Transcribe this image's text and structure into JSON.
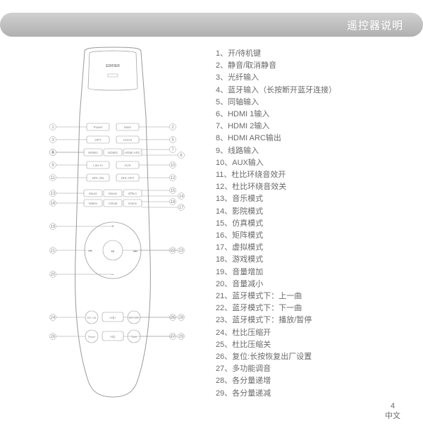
{
  "header": {
    "title": "遥控器说明"
  },
  "remote": {
    "brand": "EDIFIER",
    "outline_color": "#999999",
    "buttons": {
      "r1": [
        "Power",
        "Mute"
      ],
      "r2": [
        "OPT",
        "COAX"
      ],
      "r3": [
        "HDMI1",
        "HDMI2",
        "HDMI ARC"
      ],
      "r4": [
        "Line In",
        "AUX"
      ],
      "r5": [
        "DPL ON",
        "DPL OFF"
      ],
      "r6": [
        "Music",
        "Movie",
        "Effect"
      ],
      "r7": [
        "Matrix",
        "Virtual",
        "Game"
      ],
      "bottom": [
        "DPL ON",
        "Adj+",
        "DPL OFF",
        "Reset",
        "Adj-",
        "Tune"
      ]
    },
    "callouts_left": [
      1,
      3,
      4,
      6,
      9,
      11,
      13,
      16,
      21,
      19,
      20,
      24,
      26
    ],
    "callouts_right": [
      2,
      5,
      7,
      8,
      10,
      12,
      15,
      14,
      18,
      17,
      22,
      23,
      25,
      28,
      27,
      29
    ],
    "dpad_symbols": {
      "up": "+",
      "down": "−",
      "left": "⏮",
      "right": "⏭",
      "center": "⏯"
    }
  },
  "list": [
    "开/待机键",
    "静音/取消静音",
    "光纤输入",
    "蓝牙输入（长按断开蓝牙连接）",
    "同轴输入",
    "HDMI 1输入",
    "HDMI 2输入",
    "HDMI ARC输出",
    "线路输入",
    "AUX输入",
    "杜比环绕音效开",
    "杜比环绕音效关",
    "音乐模式",
    "影院模式",
    "仿真模式",
    "矩阵模式",
    "虚拟模式",
    "游戏模式",
    "音量增加",
    "音量减小",
    "蓝牙模式下：上一曲",
    "蓝牙模式下：下一曲",
    "蓝牙模式下：播放/暂停",
    "杜比压缩开",
    "杜比压缩关",
    "复位:长按恢复出厂设置",
    "多功能调音",
    "各分量递增",
    "各分量递减"
  ],
  "list_separator": "、",
  "footer": {
    "page": "4",
    "lang": "中文"
  },
  "colors": {
    "text": "#6a6a6a",
    "outline": "#999999",
    "bg": "#ffffff"
  }
}
